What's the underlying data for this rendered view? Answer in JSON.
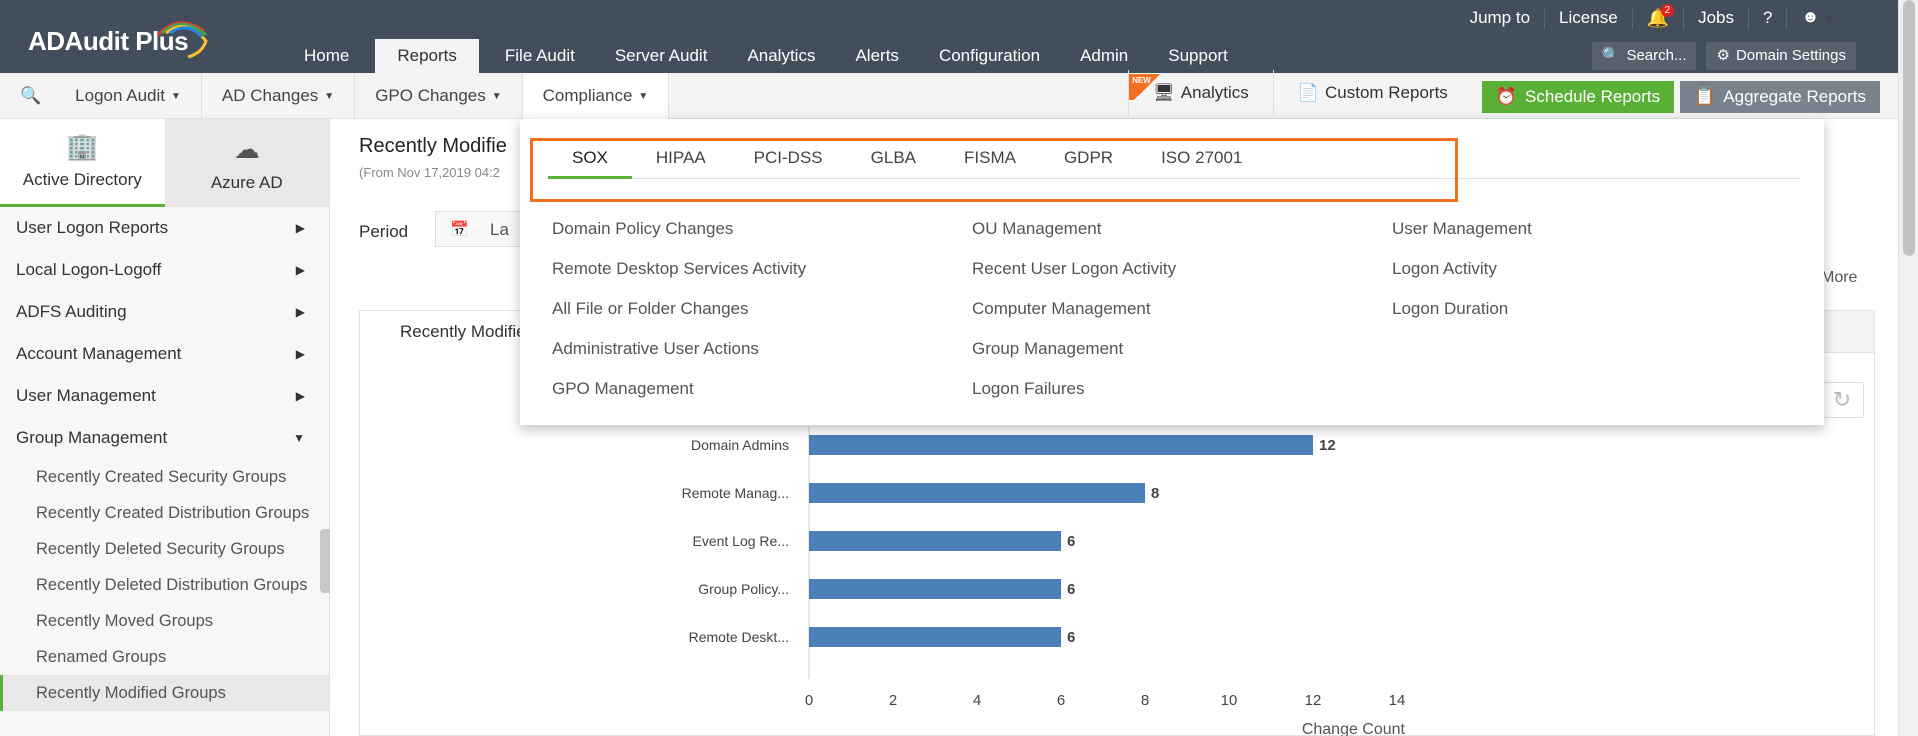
{
  "app": {
    "name": "ADAudit Plus"
  },
  "topnav": [
    "Home",
    "Reports",
    "File Audit",
    "Server Audit",
    "Analytics",
    "Alerts",
    "Configuration",
    "Admin",
    "Support"
  ],
  "toplinks": {
    "jump_to": "Jump to",
    "license": "License",
    "notifications": "2",
    "jobs": "Jobs",
    "help": "?"
  },
  "topbuttons": {
    "search": "Search...",
    "domain_settings": "Domain Settings"
  },
  "subnav": [
    "Logon Audit",
    "AD Changes",
    "GPO Changes",
    "Compliance"
  ],
  "subright": {
    "new_flag": "NEW",
    "analytics": "Analytics",
    "custom_reports": "Custom Reports",
    "schedule_reports": "Schedule Reports",
    "aggregate_reports": "Aggregate Reports"
  },
  "sidebar": {
    "tabs": [
      "Active Directory",
      "Azure AD"
    ],
    "groups": [
      "User Logon Reports",
      "Local Logon-Logoff",
      "ADFS Auditing",
      "Account Management",
      "User Management",
      "Group Management"
    ],
    "sub_items": [
      "Recently Created Security Groups",
      "Recently Created Distribution Groups",
      "Recently Deleted Security Groups",
      "Recently Deleted Distribution Groups",
      "Recently Moved Groups",
      "Renamed Groups",
      "Recently Modified Groups"
    ]
  },
  "main": {
    "title": "Recently Modifie",
    "subtitle": "(From Nov 17,2019 04:2",
    "period_label": "Period",
    "period_value": "La",
    "more": "More",
    "panel_tab": "Recently Modifie"
  },
  "compliance": {
    "tabs": [
      "SOX",
      "HIPAA",
      "PCI-DSS",
      "GLBA",
      "FISMA",
      "GDPR",
      "ISO 27001"
    ],
    "columns": [
      [
        "Domain Policy Changes",
        "Remote Desktop Services Activity",
        "All File or Folder Changes",
        "Administrative User Actions",
        "GPO Management"
      ],
      [
        "OU Management",
        "Recent User Logon Activity",
        "Computer Management",
        "Group Management",
        "Logon Failures"
      ],
      [
        "User Management",
        "Logon Activity",
        "Logon Duration"
      ]
    ]
  },
  "chart_data": {
    "type": "bar",
    "orientation": "horizontal",
    "categories": [
      "Domain Admins",
      "Remote Manag...",
      "Event Log Re...",
      "Group Policy...",
      "Remote Deskt..."
    ],
    "values": [
      12,
      8,
      6,
      6,
      6
    ],
    "xlabel": "Change Count",
    "xlim": [
      0,
      14
    ],
    "xticks": [
      0,
      2,
      4,
      6,
      8,
      10,
      12,
      14
    ],
    "color": "#4a7fb8"
  }
}
